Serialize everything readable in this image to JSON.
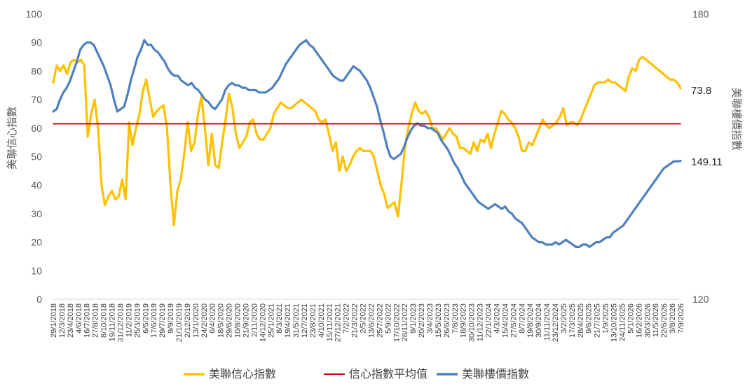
{
  "chart_data": {
    "type": "line",
    "x_axis": {
      "tick_labels": [
        "29/1/2018",
        "12/3/2018",
        "23/4/2018",
        "4/6/2018",
        "16/7/2018",
        "27/8/2018",
        "8/10/2018",
        "19/11/2018",
        "31/12/2018",
        "11/2/2019",
        "25/3/2019",
        "6/5/2019",
        "17/6/2019",
        "29/7/2019",
        "9/9/2019",
        "21/10/2019",
        "2/12/2019",
        "13/1/2020",
        "24/2/2020",
        "6/4/2020",
        "18/5/2020",
        "29/6/2020",
        "10/8/2020",
        "21/9/2020",
        "2/11/2020",
        "14/12/2020",
        "25/1/2021",
        "8/3/2021",
        "19/4/2021",
        "31/5/2021",
        "12/7/2021",
        "23/8/2021",
        "4/10/2021",
        "15/11/2021",
        "27/12/2021",
        "7/2/2022",
        "21/3/2022",
        "2/5/2022",
        "13/6/2022",
        "25/7/2022",
        "5/9/2022",
        "17/10/2022",
        "28/11/2022",
        "9/1/2023",
        "20/2/2023",
        "3/4/2023",
        "15/5/2023",
        "26/6/2023",
        "7/8/2023",
        "18/9/2023",
        "30/10/2023",
        "11/12/2023",
        "22/1/2024",
        "4/3/2024",
        "15/4/2024",
        "27/5/2024",
        "8/7/2024",
        "19/8/2024",
        "30/9/2024",
        "11/11/2024",
        "23/12/2024",
        "3/2/2025",
        "17/3/2025",
        "28/4/2025",
        "9/6/2025",
        "21/7/2025",
        "1/9/2025",
        "13/10/2025",
        "24/11/2025",
        "5/1/2026",
        "16/2/2026",
        "30/3/2026",
        "11/5/2026",
        "22/6/2026",
        "3/8/2026",
        "7/9/2026"
      ]
    },
    "y_left": {
      "label": "美聯信心指數",
      "range": [
        0,
        100
      ],
      "ticks": [
        "0",
        "10",
        "20",
        "30",
        "40",
        "50",
        "60",
        "70",
        "80",
        "90",
        "100"
      ]
    },
    "y_right": {
      "label": "美聯樓價指數",
      "range": [
        120,
        180
      ],
      "ticks": [
        "120",
        "180"
      ]
    },
    "series": [
      {
        "name": "美聯信心指數",
        "axis": "left",
        "color": "#FFC000",
        "values": [
          76,
          82,
          80,
          82,
          79,
          83,
          84,
          83,
          84,
          82,
          57,
          65,
          70,
          60,
          40,
          33,
          36,
          38,
          35,
          36,
          42,
          35,
          62,
          54,
          60,
          65,
          73,
          77,
          70,
          64,
          66,
          67,
          68,
          60,
          40,
          26,
          38,
          42,
          51,
          62,
          52,
          55,
          65,
          71,
          60,
          47,
          58,
          47,
          46,
          55,
          63,
          72,
          67,
          58,
          53,
          55,
          57,
          62,
          63,
          58,
          56,
          56,
          58,
          60,
          65,
          67,
          69,
          68,
          67,
          67,
          68,
          69,
          70,
          69,
          68,
          67,
          66,
          63,
          62,
          63,
          58,
          52,
          55,
          45,
          50,
          45,
          47,
          50,
          52,
          53,
          52,
          52,
          52,
          50,
          45,
          40,
          37,
          32,
          33,
          34,
          29,
          40,
          53,
          60,
          65,
          69,
          66,
          65,
          66,
          64,
          60,
          60,
          58,
          56,
          58,
          60,
          58,
          57,
          53,
          53,
          52,
          51,
          55,
          52,
          56,
          55,
          58,
          53,
          58,
          62,
          66,
          65,
          63,
          62,
          60,
          57,
          52,
          52,
          55,
          54,
          57,
          60,
          63,
          61,
          60,
          61,
          62,
          64,
          67,
          61,
          62,
          62,
          61,
          63,
          66,
          69,
          72,
          75,
          76,
          76,
          76,
          77,
          76,
          76,
          75,
          74,
          73,
          78,
          81,
          80,
          84,
          85,
          84,
          83,
          82,
          81,
          80,
          79,
          78,
          77,
          77,
          76,
          74
        ]
      },
      {
        "name": "信心指數平均值",
        "axis": "left",
        "color": "#C00000",
        "values": [
          61.5,
          61.5
        ]
      },
      {
        "name": "美聯樓價指數",
        "axis": "right",
        "color": "#4F81BD",
        "values": [
          159.5,
          160,
          162,
          163.5,
          164.5,
          166,
          168,
          170,
          172.5,
          173.5,
          174,
          174,
          173.5,
          172,
          170.5,
          169,
          167,
          165,
          162,
          159.5,
          160,
          160.5,
          163,
          166,
          168.5,
          171,
          172.5,
          174.5,
          173.5,
          173.5,
          172.5,
          172,
          171,
          170,
          168.5,
          167.5,
          167,
          167,
          166,
          165.5,
          165,
          165.5,
          164.5,
          164,
          163,
          162,
          161.5,
          160.5,
          160,
          161,
          162,
          164,
          165,
          165.5,
          165,
          165,
          164.5,
          164.5,
          164,
          164,
          164,
          163.5,
          163.5,
          163.5,
          164,
          164.5,
          165.5,
          166.5,
          168,
          169.5,
          170.5,
          171.5,
          172.5,
          173.5,
          174,
          174.5,
          173.5,
          173,
          172,
          171,
          170,
          169,
          168,
          167,
          166.5,
          166,
          166,
          167,
          168,
          169,
          168.5,
          168,
          167,
          166,
          164.5,
          162.5,
          160.5,
          157.5,
          155,
          152,
          150,
          149.5,
          150,
          150.5,
          152,
          154,
          155.5,
          156.5,
          157,
          156.5,
          156.5,
          156,
          156,
          155.5,
          155,
          153.5,
          152.5,
          151.5,
          150,
          148.5,
          147.5,
          146,
          144.5,
          143.5,
          142.5,
          141.5,
          140.5,
          140,
          139.5,
          139,
          139.5,
          140,
          139.5,
          139,
          139.5,
          138.5,
          138,
          137,
          136.5,
          136,
          135,
          134,
          133,
          132.5,
          132,
          132,
          131.5,
          131.5,
          131.5,
          132,
          131.5,
          132,
          132.5,
          132,
          131.5,
          131,
          131,
          131.5,
          131.5,
          131,
          131.5,
          132,
          132,
          132.5,
          133,
          133,
          134,
          134.5,
          135,
          135.5,
          136.5,
          137.5,
          138.5,
          139.5,
          140.5,
          141.5,
          142.5,
          143.5,
          144.5,
          145.5,
          146.5,
          147.5,
          148,
          148.5,
          149,
          149,
          149.11
        ]
      }
    ],
    "end_labels": {
      "left_series_last": "73.8",
      "right_series_last": "149.11"
    },
    "legend": {
      "position": "bottom",
      "items": [
        "美聯信心指數",
        "信心指數平均值",
        "美聯樓價指數"
      ]
    },
    "grid": false
  }
}
